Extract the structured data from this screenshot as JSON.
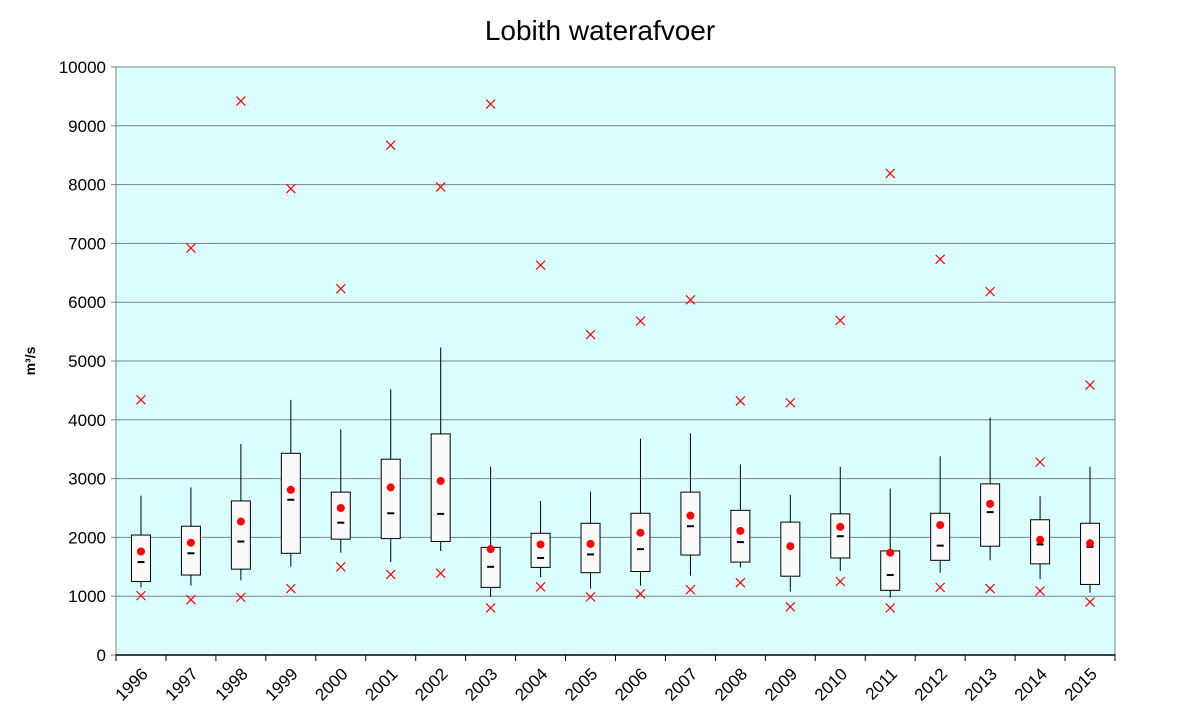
{
  "chart_data": {
    "type": "box",
    "title": "Lobith waterafvoer",
    "xlabel": "",
    "ylabel": "m³/s",
    "ylim": [
      0,
      10000
    ],
    "yticks": [
      0,
      1000,
      2000,
      3000,
      4000,
      5000,
      6000,
      7000,
      8000,
      9000,
      10000
    ],
    "grid": true,
    "categories": [
      "1996",
      "1997",
      "1998",
      "1999",
      "2000",
      "2001",
      "2002",
      "2003",
      "2004",
      "2005",
      "2006",
      "2007",
      "2008",
      "2009",
      "2010",
      "2011",
      "2012",
      "2013",
      "2014",
      "2015"
    ],
    "series": [
      {
        "name": "",
        "values_key": "min",
        "values": [
          1010,
          940,
          980,
          1130,
          1500,
          1370,
          1390,
          800,
          1160,
          990,
          1040,
          1110,
          1230,
          820,
          1250,
          800,
          1150,
          1130,
          1090,
          900
        ]
      },
      {
        "name": "",
        "values_key": "p10",
        "values": [
          1150,
          1180,
          1270,
          1500,
          1740,
          1580,
          1770,
          990,
          1320,
          1130,
          1180,
          1350,
          1490,
          1080,
          1430,
          980,
          1400,
          1610,
          1290,
          1060
        ]
      },
      {
        "name": "",
        "values_key": "q1",
        "values": [
          1250,
          1360,
          1460,
          1730,
          1970,
          1980,
          1930,
          1150,
          1490,
          1400,
          1420,
          1700,
          1580,
          1340,
          1650,
          1100,
          1610,
          1850,
          1550,
          1200
        ]
      },
      {
        "name": "",
        "values_key": "median",
        "values": [
          1580,
          1730,
          1930,
          2640,
          2250,
          2410,
          2400,
          1500,
          1650,
          1710,
          1800,
          2190,
          1920,
          1840,
          2020,
          1360,
          1860,
          2430,
          1880,
          1840
        ]
      },
      {
        "name": "",
        "values_key": "q3",
        "values": [
          2040,
          2190,
          2620,
          3430,
          2770,
          3330,
          3760,
          1830,
          2070,
          2240,
          2410,
          2770,
          2460,
          2260,
          2400,
          1770,
          2410,
          2910,
          2300,
          2240
        ]
      },
      {
        "name": "",
        "values_key": "p90",
        "values": [
          2710,
          2850,
          3590,
          4340,
          3840,
          4520,
          5230,
          3200,
          2620,
          2780,
          3680,
          3770,
          3240,
          2720,
          3200,
          2830,
          3380,
          4040,
          2700,
          3200
        ]
      },
      {
        "name": "",
        "values_key": "max",
        "values": [
          4340,
          6920,
          9420,
          7930,
          6230,
          8670,
          7960,
          9370,
          6630,
          5450,
          5680,
          6040,
          4320,
          4290,
          5690,
          8190,
          6730,
          6180,
          3280,
          4590
        ]
      },
      {
        "name": "",
        "values_key": "mean",
        "values": [
          1760,
          1910,
          2270,
          2810,
          2500,
          2850,
          2960,
          1800,
          1880,
          1890,
          2080,
          2370,
          2110,
          1850,
          2180,
          1740,
          2210,
          2570,
          1960,
          1900
        ]
      }
    ],
    "colors": {
      "plot_background": "#d9ffff",
      "gridline": "#808080",
      "box_fill": "#fafafa",
      "box_stroke": "#000000",
      "mean_marker": "#ff0000",
      "extreme_marker": "#ff0000"
    }
  }
}
